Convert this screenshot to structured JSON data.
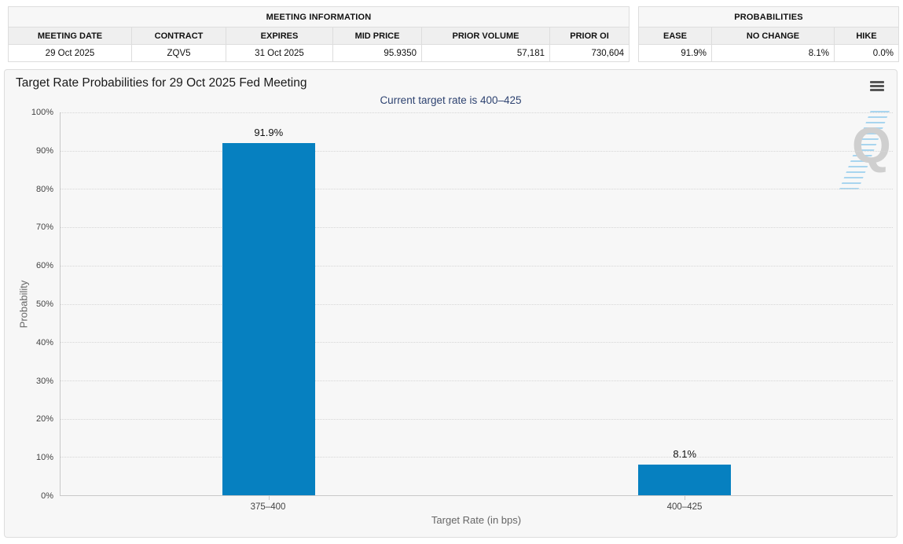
{
  "meeting_information": {
    "title": "MEETING INFORMATION",
    "columns": [
      "MEETING DATE",
      "CONTRACT",
      "EXPIRES",
      "MID PRICE",
      "PRIOR VOLUME",
      "PRIOR OI"
    ],
    "row": [
      "29 Oct 2025",
      "ZQV5",
      "31 Oct 2025",
      "95.9350",
      "57,181",
      "730,604"
    ]
  },
  "probabilities": {
    "title": "PROBABILITIES",
    "columns": [
      "EASE",
      "NO CHANGE",
      "HIKE"
    ],
    "row": [
      "91.9%",
      "8.1%",
      "0.0%"
    ]
  },
  "chart": {
    "title": "Target Rate Probabilities for 29 Oct 2025 Fed Meeting",
    "subtitle": "Current target rate is 400–425",
    "menu_icon": "hamburger-icon",
    "watermark_letter": "Q"
  },
  "chart_data": {
    "type": "bar",
    "title": "Target Rate Probabilities for 29 Oct 2025 Fed Meeting",
    "subtitle": "Current target rate is 400–425",
    "categories": [
      "375–400",
      "400–425"
    ],
    "values": [
      91.9,
      8.1
    ],
    "data_labels": [
      "91.9%",
      "8.1%"
    ],
    "xlabel": "Target Rate (in bps)",
    "ylabel": "Probability",
    "ylim": [
      0,
      100
    ],
    "yticks": [
      0,
      10,
      20,
      30,
      40,
      50,
      60,
      70,
      80,
      90,
      100
    ],
    "ytick_suffix": "%",
    "grid": "dotted-horizontal",
    "legend": "none",
    "bar_color": "#0680c0"
  },
  "colors": {
    "bar": "#0680c0",
    "subtitle_text": "#2e4371",
    "panel_background": "#f7f7f7",
    "grid": "#d6d6d6",
    "axis": "#c8c8c8"
  }
}
